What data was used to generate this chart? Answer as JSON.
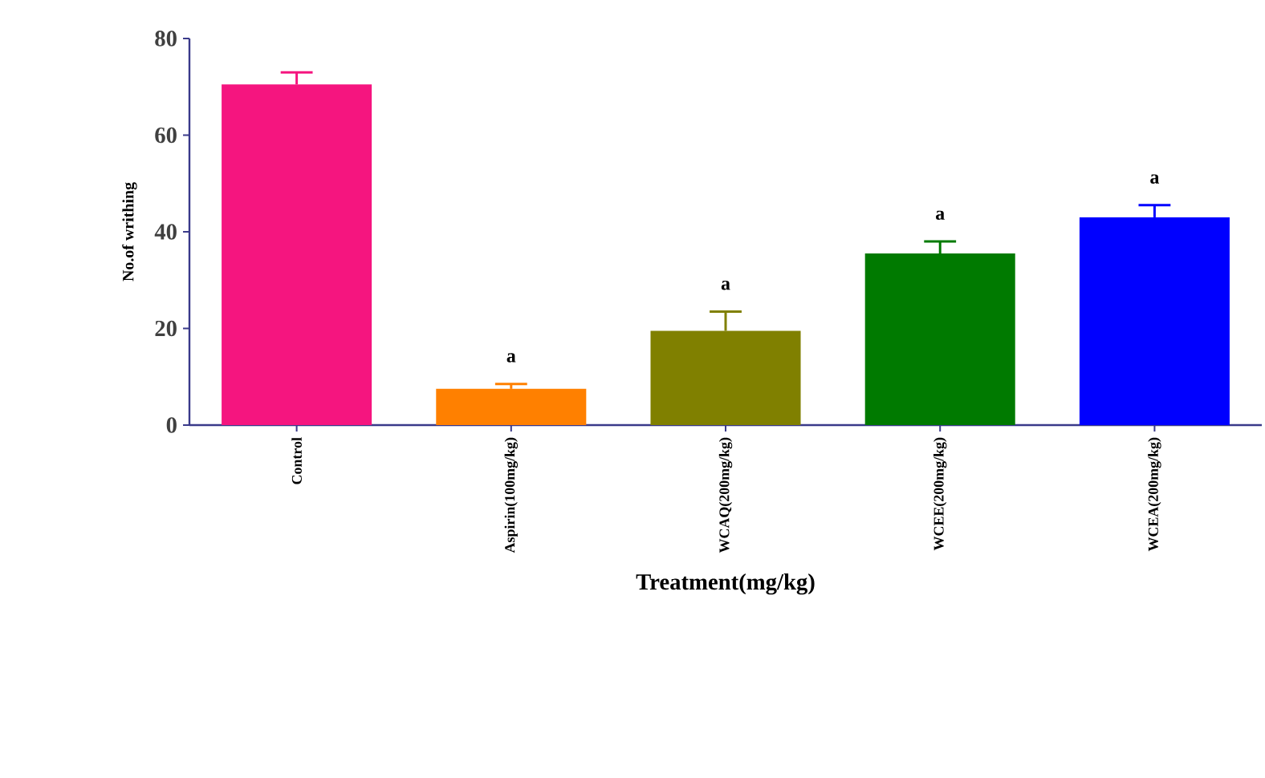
{
  "chart_data": {
    "type": "bar",
    "xlabel": "Treatment(mg/kg)",
    "ylabel": "No.of writhing",
    "categories": [
      "Control",
      "Aspirin(100mg/kg)",
      "WCAQ(200mg/kg)",
      "WCEE(200mg/kg)",
      "WCEA(200mg/kg)"
    ],
    "values": [
      70.5,
      7.5,
      19.5,
      35.5,
      43
    ],
    "errors": [
      [
        70.5,
        73
      ],
      [
        7.5,
        8.5
      ],
      [
        19.5,
        23.5
      ],
      [
        35.5,
        38
      ],
      [
        43,
        45.5
      ]
    ],
    "colors": [
      "#f5157f",
      "#ff8000",
      "#808000",
      "#007a00",
      "#0000ff"
    ],
    "ylim": [
      0,
      80
    ],
    "yticks": [
      0,
      20,
      40,
      60,
      80
    ],
    "annotations": [
      {
        "text": "a",
        "x": "Aspirin(100mg/kg)",
        "y": 8.5
      },
      {
        "text": "a",
        "x": "WCAQ(200mg/kg)",
        "y": 23.5
      },
      {
        "text": "a",
        "x": "WCEE(200mg/kg)",
        "y": 38
      },
      {
        "text": "a",
        "x": "WCEA(200mg/kg)",
        "y": 45.5
      }
    ]
  }
}
